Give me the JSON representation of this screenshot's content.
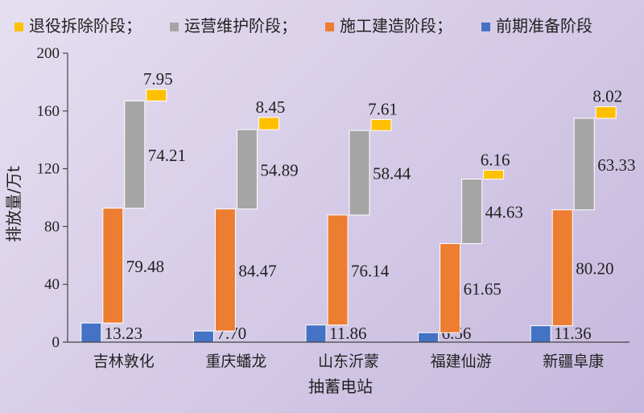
{
  "chart_data": {
    "type": "bar",
    "subtype": "stacked-waterfall",
    "xlabel": "抽蓄电站",
    "ylabel": "排放量/万t",
    "ylim": [
      0,
      200
    ],
    "yticks": [
      0,
      40,
      80,
      120,
      160,
      200
    ],
    "categories": [
      "吉林敦化",
      "重庆蟠龙",
      "山东沂蒙",
      "福建仙游",
      "新疆阜康"
    ],
    "series": [
      {
        "name": "前期准备阶段",
        "color": "#4472c4",
        "values": [
          13.23,
          7.7,
          11.86,
          6.56,
          11.36
        ],
        "labels": [
          "13.23",
          "7.70",
          "11.86",
          "6.56",
          "11.36"
        ]
      },
      {
        "name": "施工建造阶段",
        "color": "#ed7d31",
        "values": [
          79.48,
          84.47,
          76.14,
          61.65,
          80.2
        ],
        "labels": [
          "79.48",
          "84.47",
          "76.14",
          "61.65",
          "80.20"
        ]
      },
      {
        "name": "运营维护阶段",
        "color": "#a5a5a5",
        "values": [
          74.21,
          54.89,
          58.44,
          44.63,
          63.33
        ],
        "labels": [
          "74.21",
          "54.89",
          "58.44",
          "44.63",
          "63.33"
        ]
      },
      {
        "name": "退役拆除阶段",
        "color": "#ffc000",
        "values": [
          7.95,
          8.45,
          7.61,
          6.16,
          8.02
        ],
        "labels": [
          "7.95",
          "8.45",
          "7.61",
          "6.16",
          "8.02"
        ]
      }
    ],
    "legend": {
      "position": "top",
      "order": [
        3,
        2,
        1,
        0
      ],
      "items": [
        "退役拆除阶段；",
        "运营维护阶段；",
        "施工建造阶段；",
        "前期准备阶段"
      ]
    },
    "grid": false
  }
}
